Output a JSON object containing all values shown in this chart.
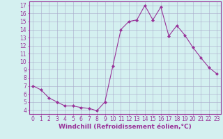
{
  "x": [
    0,
    1,
    2,
    3,
    4,
    5,
    6,
    7,
    8,
    9,
    10,
    11,
    12,
    13,
    14,
    15,
    16,
    17,
    18,
    19,
    20,
    21,
    22,
    23
  ],
  "y": [
    7.0,
    6.5,
    5.5,
    5.0,
    4.5,
    4.5,
    4.3,
    4.2,
    3.9,
    5.0,
    9.5,
    14.0,
    15.0,
    15.2,
    17.0,
    15.2,
    16.8,
    13.2,
    14.5,
    13.3,
    11.8,
    10.5,
    9.3,
    8.5
  ],
  "line_color": "#993399",
  "marker": "D",
  "markersize": 2.0,
  "linewidth": 0.8,
  "background_color": "#d4f0f0",
  "grid_color": "#aaaacc",
  "xlabel": "Windchill (Refroidissement éolien,°C)",
  "xlabel_fontsize": 6.5,
  "yticks": [
    4,
    5,
    6,
    7,
    8,
    9,
    10,
    11,
    12,
    13,
    14,
    15,
    16,
    17
  ],
  "xticks": [
    0,
    1,
    2,
    3,
    4,
    5,
    6,
    7,
    8,
    9,
    10,
    11,
    12,
    13,
    14,
    15,
    16,
    17,
    18,
    19,
    20,
    21,
    22,
    23
  ],
  "ylim": [
    3.5,
    17.5
  ],
  "xlim": [
    -0.5,
    23.5
  ],
  "tick_color": "#993399",
  "tick_fontsize": 5.5,
  "spine_color": "#993399"
}
